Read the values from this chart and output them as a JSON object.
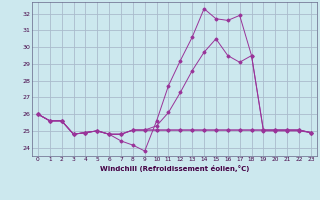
{
  "xlabel": "Windchill (Refroidissement éolien,°C)",
  "background_color": "#cce8ee",
  "grid_color": "#aabbcc",
  "line_color": "#993399",
  "xlim": [
    -0.5,
    23.5
  ],
  "ylim": [
    23.5,
    32.7
  ],
  "yticks": [
    24,
    25,
    26,
    27,
    28,
    29,
    30,
    31,
    32
  ],
  "xticks": [
    0,
    1,
    2,
    3,
    4,
    5,
    6,
    7,
    8,
    9,
    10,
    11,
    12,
    13,
    14,
    15,
    16,
    17,
    18,
    19,
    20,
    21,
    22,
    23
  ],
  "series1_x": [
    0,
    1,
    2,
    3,
    4,
    5,
    6,
    7,
    8,
    9,
    10,
    11,
    12,
    13,
    14,
    15,
    16,
    17,
    18,
    19,
    20,
    21,
    22,
    23
  ],
  "series1_y": [
    26.0,
    25.6,
    25.6,
    24.8,
    24.9,
    25.0,
    24.8,
    24.4,
    24.15,
    23.8,
    25.6,
    27.7,
    29.2,
    30.6,
    32.3,
    31.7,
    31.6,
    31.9,
    29.5,
    25.0,
    25.0,
    25.0,
    25.0,
    24.9
  ],
  "series2_x": [
    0,
    1,
    2,
    3,
    4,
    5,
    6,
    7,
    8,
    9,
    10,
    11,
    12,
    13,
    14,
    15,
    16,
    17,
    18,
    19,
    20,
    21,
    22,
    23
  ],
  "series2_y": [
    26.0,
    25.6,
    25.6,
    24.8,
    24.9,
    25.0,
    24.8,
    24.8,
    25.05,
    25.05,
    25.05,
    25.05,
    25.05,
    25.05,
    25.05,
    25.05,
    25.05,
    25.05,
    25.05,
    25.05,
    25.05,
    25.05,
    25.05,
    24.9
  ],
  "series3_x": [
    0,
    1,
    2,
    3,
    4,
    5,
    6,
    7,
    8,
    9,
    10,
    11,
    12,
    13,
    14,
    15,
    16,
    17,
    18,
    19,
    20,
    21,
    22,
    23
  ],
  "series3_y": [
    26.0,
    25.6,
    25.6,
    24.8,
    24.9,
    25.0,
    24.8,
    24.8,
    25.05,
    25.05,
    25.3,
    26.1,
    27.3,
    28.6,
    29.7,
    30.5,
    29.5,
    29.1,
    29.5,
    25.05,
    25.05,
    25.05,
    25.05,
    24.9
  ],
  "series4_x": [
    0,
    1,
    2,
    3,
    4,
    5,
    6,
    7,
    8,
    9,
    10,
    11,
    12,
    13,
    14,
    15,
    16,
    17,
    18,
    19,
    20,
    21,
    22,
    23
  ],
  "series4_y": [
    26.0,
    25.6,
    25.6,
    24.8,
    24.9,
    25.0,
    24.8,
    24.8,
    25.05,
    25.05,
    25.05,
    25.05,
    25.05,
    25.05,
    25.05,
    25.05,
    25.05,
    25.05,
    25.05,
    25.05,
    25.05,
    25.05,
    25.05,
    24.9
  ]
}
